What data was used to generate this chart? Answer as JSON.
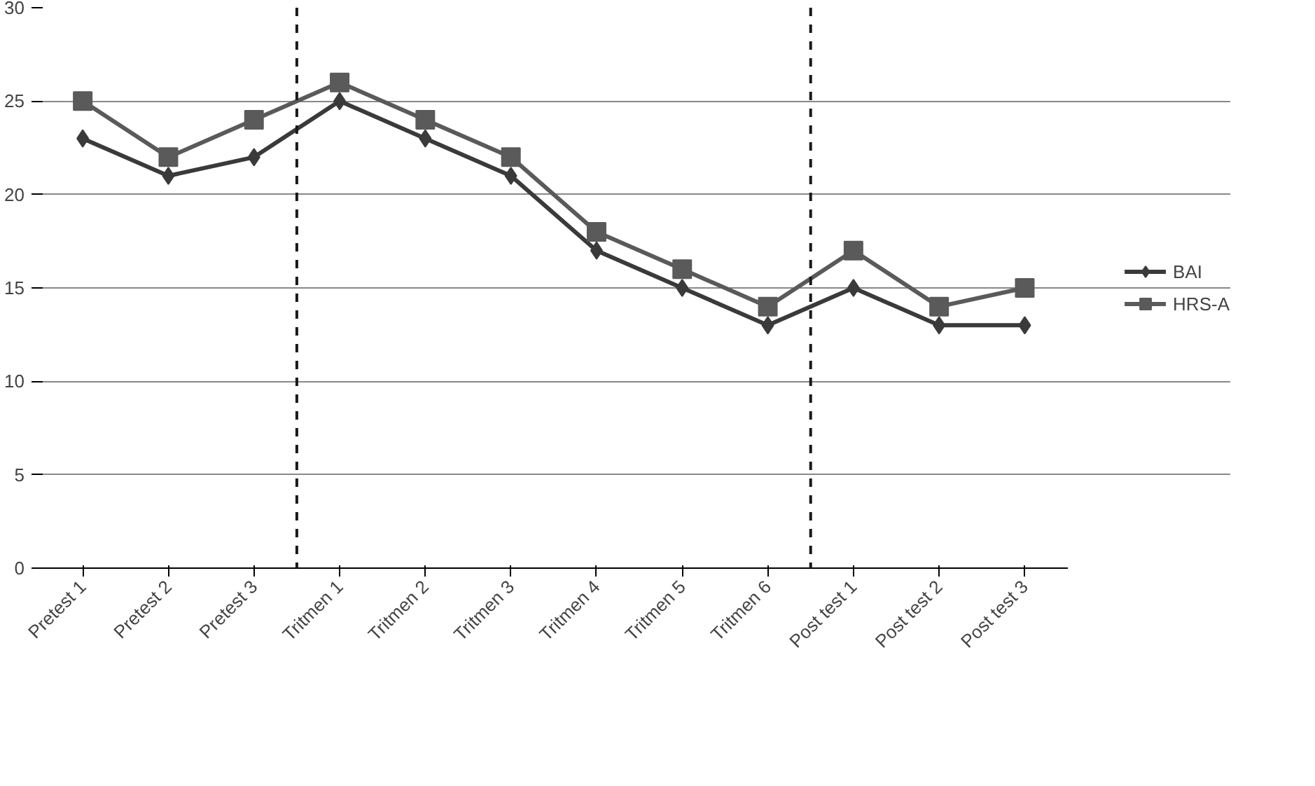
{
  "chart_data": {
    "type": "line",
    "categories": [
      "Pretest 1",
      "Pretest 2",
      "Pretest 3",
      "Tritmen 1",
      "Tritmen 2",
      "Tritmen 3",
      "Tritmen 4",
      "Tritmen 5",
      "Tritmen 6",
      "Post test 1",
      "Post test 2",
      "Post test 3"
    ],
    "series": [
      {
        "name": "BAI",
        "color": "#3a3a3a",
        "marker": "diamond",
        "values": [
          23,
          21,
          22,
          25,
          23,
          21,
          17,
          15,
          13,
          15,
          13,
          13
        ]
      },
      {
        "name": "HRS-A",
        "color": "#5a5a5a",
        "marker": "square",
        "values": [
          25,
          22,
          24,
          26,
          24,
          22,
          18,
          16,
          14,
          17,
          14,
          15
        ]
      }
    ],
    "ylim": [
      0,
      30
    ],
    "yticks": [
      0,
      5,
      10,
      15,
      20,
      25,
      30
    ],
    "grid": "y",
    "legend": "right"
  }
}
